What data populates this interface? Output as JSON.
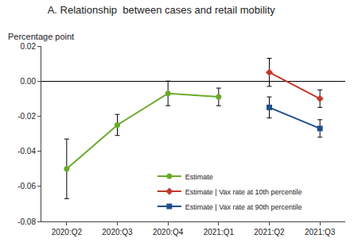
{
  "chart_data": {
    "type": "line",
    "title": "A. Relationship  between cases and retail mobility",
    "y_label": "Percentage point",
    "categories": [
      "2020:Q2",
      "2020:Q3",
      "2020:Q4",
      "2021:Q1",
      "2021:Q2",
      "2021:Q3"
    ],
    "series": [
      {
        "name": "Estimate",
        "color": "#6aaa2a",
        "marker": "circle",
        "line_style": "solid",
        "values": [
          -0.05,
          -0.025,
          -0.007,
          -0.009,
          null,
          null
        ],
        "error_minus": [
          0.017,
          0.006,
          0.007,
          0.005,
          null,
          null
        ],
        "error_plus": [
          0.017,
          0.006,
          0.007,
          0.005,
          null,
          null
        ]
      },
      {
        "name": "Estimate | Vax rate at 10th percentile",
        "color": "#c0392b",
        "marker": "diamond",
        "line_style": "solid",
        "values": [
          null,
          null,
          null,
          null,
          0.005,
          -0.01
        ],
        "error_minus": [
          null,
          null,
          null,
          null,
          0.008,
          0.005
        ],
        "error_plus": [
          null,
          null,
          null,
          null,
          0.008,
          0.005
        ]
      },
      {
        "name": "Estimate | Vax rate at 90th percentile",
        "color": "#1f4e8c",
        "marker": "square",
        "line_style": "solid",
        "values": [
          null,
          null,
          null,
          null,
          -0.015,
          -0.027
        ],
        "error_minus": [
          null,
          null,
          null,
          null,
          0.006,
          0.005
        ],
        "error_plus": [
          null,
          null,
          null,
          null,
          0.006,
          0.005
        ]
      }
    ],
    "ylim": [
      -0.08,
      0.02
    ],
    "yticks": [
      -0.08,
      -0.06,
      -0.04,
      -0.02,
      {
        "value": 0,
        "label": "0.00"
      },
      0.02
    ],
    "grid": false,
    "legend": "lower center"
  }
}
